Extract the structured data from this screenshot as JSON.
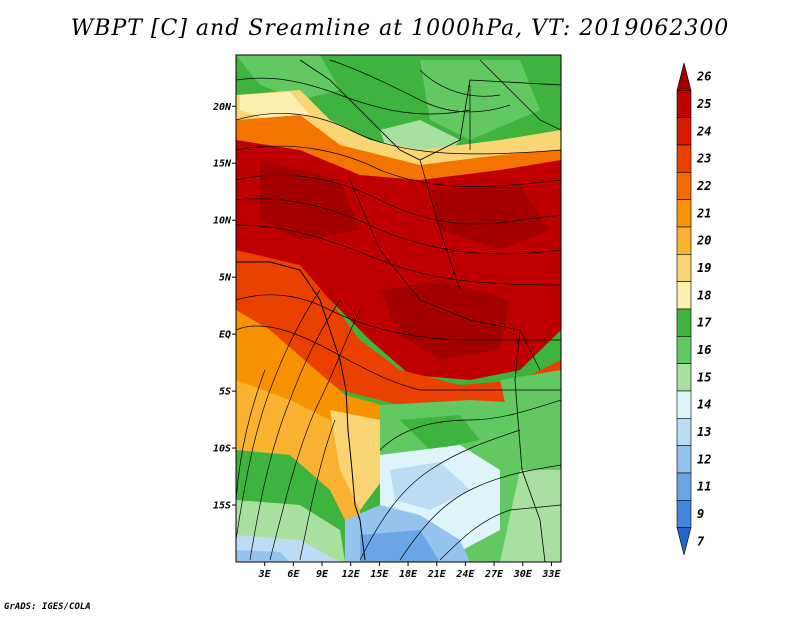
{
  "title": "WBPT [C] and Sreamline at 1000hPa, VT: 2019062300",
  "footer": "GrADS: IGES/COLA",
  "map": {
    "lat_labels": [
      "20N",
      "15N",
      "10N",
      "5N",
      "EQ",
      "5S",
      "10S",
      "15S"
    ],
    "lat_values": [
      20,
      15,
      10,
      5,
      0,
      -5,
      -10,
      -15
    ],
    "lon_labels": [
      "3E",
      "6E",
      "9E",
      "12E",
      "15E",
      "18E",
      "21E",
      "24E",
      "27E",
      "30E",
      "33E"
    ],
    "lon_values": [
      3,
      6,
      9,
      12,
      15,
      18,
      21,
      24,
      27,
      30,
      33
    ],
    "lat_range": [
      -20,
      24.5
    ],
    "lon_range": [
      0,
      34
    ]
  },
  "colorbar": {
    "labels": [
      "26",
      "25",
      "24",
      "23",
      "22",
      "21",
      "20",
      "19",
      "18",
      "17",
      "16",
      "15",
      "14",
      "13",
      "12",
      "11",
      "9",
      "7"
    ],
    "colors": [
      "#a50000",
      "#c00000",
      "#d81a00",
      "#ea4000",
      "#f46a00",
      "#f79200",
      "#f9b330",
      "#fad574",
      "#fcf0b0",
      "#3eb33e",
      "#62c862",
      "#a8e0a0",
      "#dff4f8",
      "#bcdcf4",
      "#94c4ee",
      "#6aa6e6",
      "#4286dc",
      "#2466cc"
    ]
  }
}
